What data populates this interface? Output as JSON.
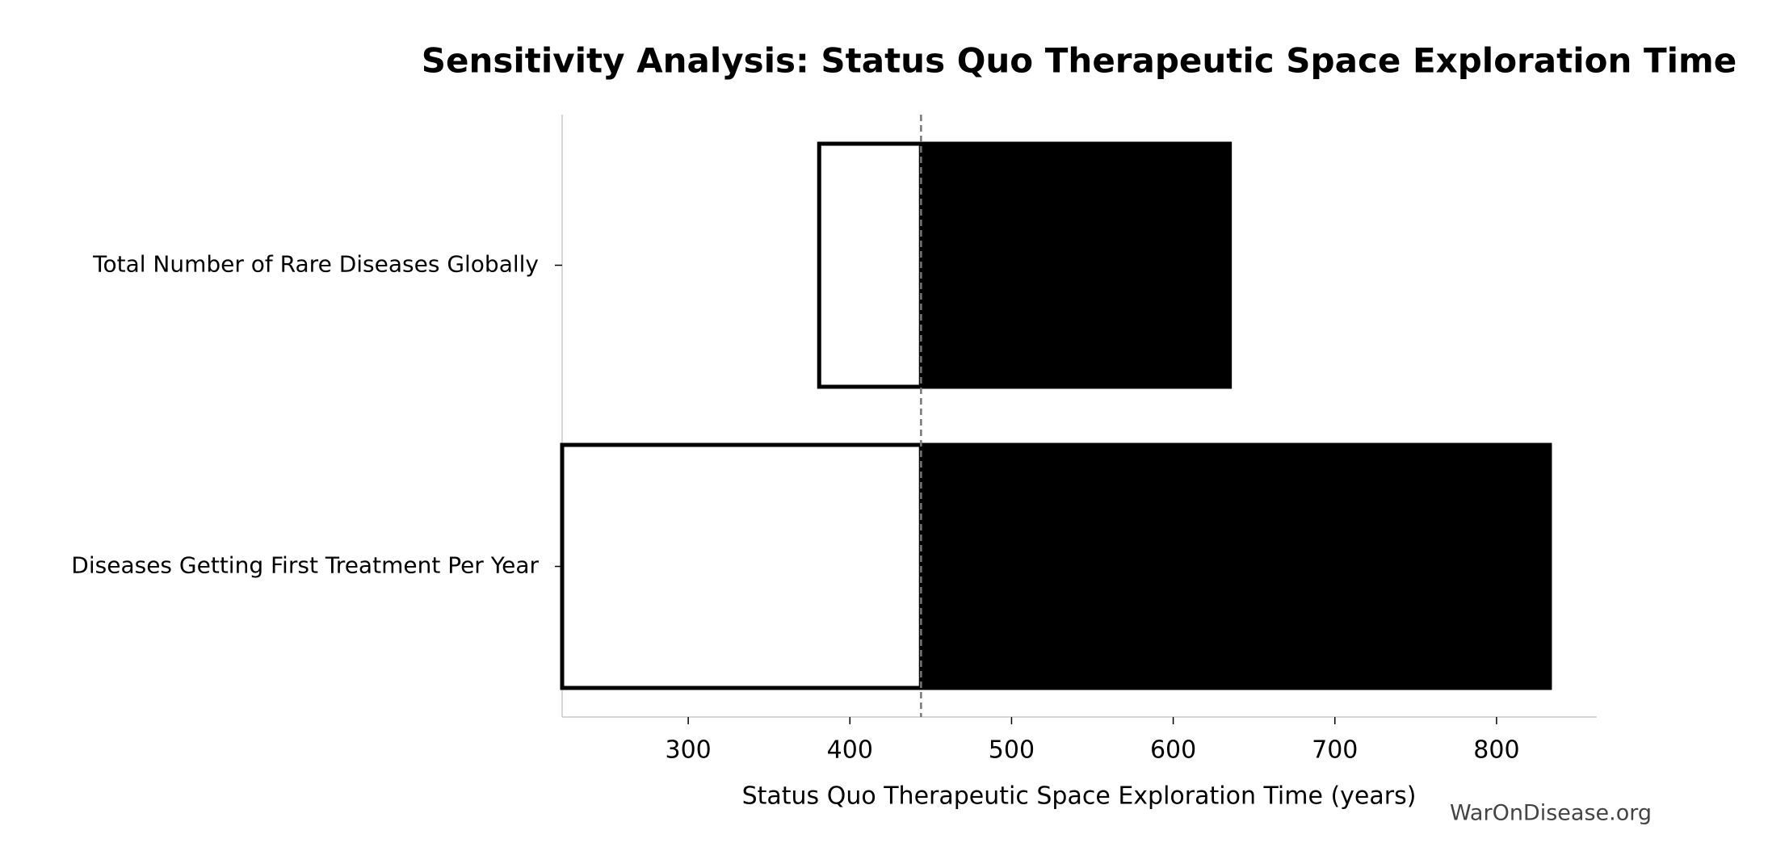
{
  "chart_data": {
    "type": "tornado",
    "title": "Sensitivity Analysis: Status Quo Therapeutic Space Exploration Time",
    "x_label": "Status Quo Therapeutic Space Exploration Time (years)",
    "watermark": "WarOnDisease.org",
    "categories": [
      "Total Number of Rare Diseases Globally",
      "Diseases Getting First Treatment Per Year"
    ],
    "baseline": 444,
    "series": [
      {
        "color": "#ffffff",
        "edge_color": "#000000",
        "values": [
          381,
          222
        ]
      },
      {
        "color": "#000000",
        "edge_color": "#000000",
        "values": [
          635,
          833
        ]
      }
    ],
    "xlim": [
      222,
      862
    ],
    "xticks": [
      300,
      400,
      500,
      600,
      700,
      800
    ]
  }
}
